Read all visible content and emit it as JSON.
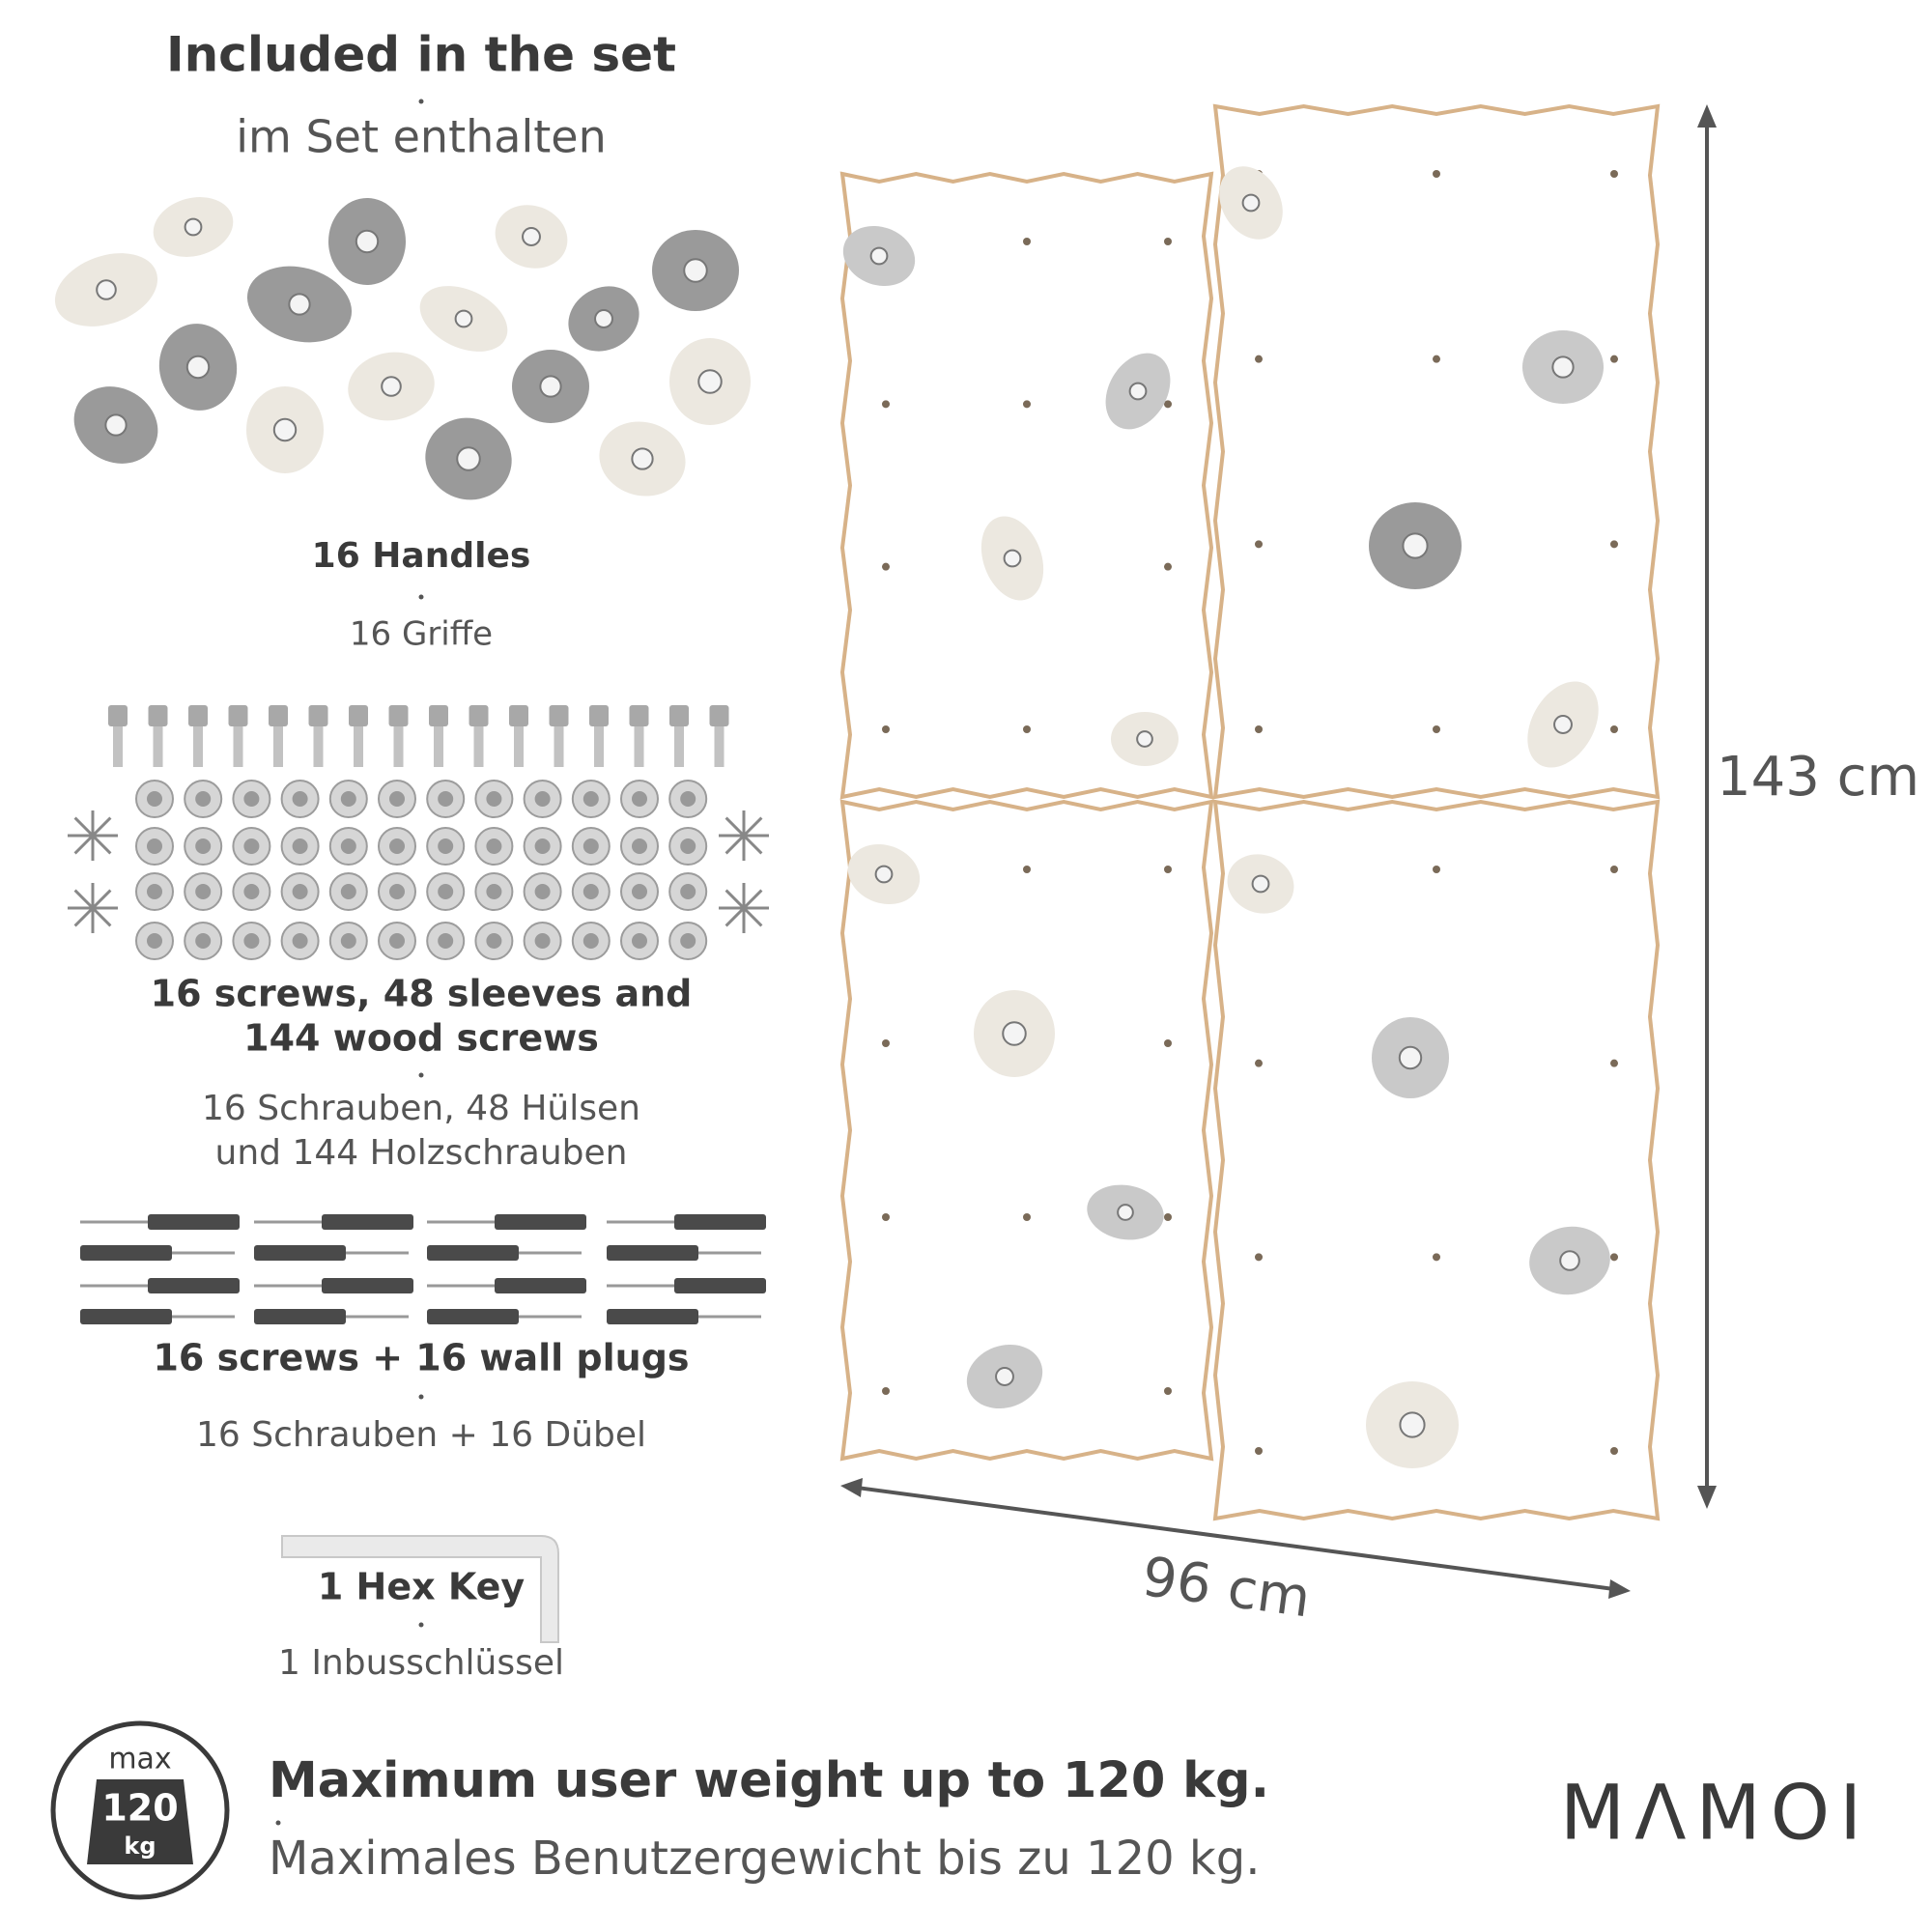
{
  "header": {
    "title": "Included in the set",
    "subtitle": "im Set enthalten"
  },
  "items": [
    {
      "title": [
        "16 Handles"
      ],
      "subtitle": [
        "16 Griffe"
      ]
    },
    {
      "title": [
        "16 screws, 48 sleeves and",
        "144 wood screws"
      ],
      "subtitle": [
        "16 Schrauben, 48 Hülsen",
        "und 144 Holzschrauben"
      ]
    },
    {
      "title": [
        "16 screws + 16 wall plugs"
      ],
      "subtitle": [
        "16 Schrauben + 16 Dübel"
      ]
    },
    {
      "title": [
        "1 Hex Key"
      ],
      "subtitle": [
        "1 Inbusschlüssel"
      ]
    }
  ],
  "dimensions": {
    "height": "143 cm",
    "width": "96 cm"
  },
  "badge": {
    "top": "max",
    "value": "120",
    "unit": "kg"
  },
  "footer": {
    "title": "Maximum user weight up to 120 kg.",
    "subtitle": "Maximales Benutzergewicht bis zu 120 kg."
  },
  "brand": "MΛMOI"
}
